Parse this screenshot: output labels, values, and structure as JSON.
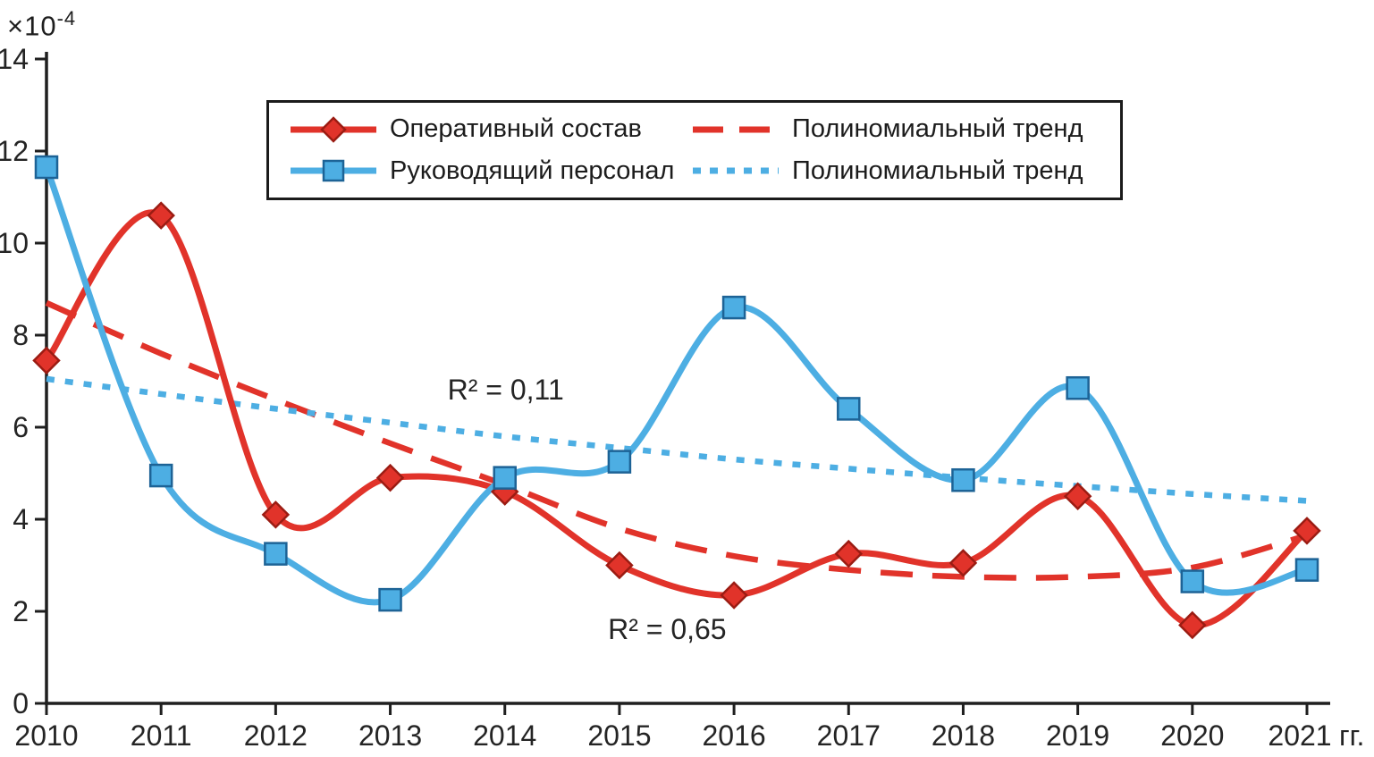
{
  "chart_data": {
    "type": "line",
    "title": "",
    "y_unit_base": "×10",
    "y_unit_exp": "-4",
    "x_suffix": "гг.",
    "x": [
      2010,
      2011,
      2012,
      2013,
      2014,
      2015,
      2016,
      2017,
      2018,
      2019,
      2020,
      2021
    ],
    "ylim": [
      0,
      14
    ],
    "y_ticks": [
      0,
      2,
      4,
      6,
      8,
      10,
      12,
      14
    ],
    "grid": false,
    "legend_position": "top-center",
    "series": [
      {
        "key": "operational",
        "name": "Оперативный состав",
        "color": "#e1332a",
        "marker": "diamond",
        "marker_edge": "#9b1c13",
        "line": "solid",
        "values": [
          7.45,
          10.6,
          4.1,
          4.9,
          4.6,
          3.0,
          2.35,
          3.25,
          3.05,
          4.5,
          1.7,
          3.75
        ]
      },
      {
        "key": "management",
        "name": "Руководящий персонал",
        "color": "#4daee3",
        "marker": "square",
        "marker_edge": "#1d6396",
        "line": "solid",
        "values": [
          11.65,
          4.95,
          3.25,
          2.25,
          4.9,
          5.25,
          8.6,
          6.4,
          4.85,
          6.85,
          2.65,
          2.9
        ]
      },
      {
        "key": "operational-trend",
        "name": "Полиномиальный тренд",
        "color": "#e1332a",
        "marker": "none",
        "marker_edge": "",
        "line": "dashed",
        "values": [
          8.7,
          7.6,
          6.6,
          5.65,
          4.75,
          3.8,
          3.2,
          2.9,
          2.75,
          2.75,
          2.95,
          3.65
        ]
      },
      {
        "key": "management-trend",
        "name": "Полиномиальный тренд",
        "color": "#4daee3",
        "marker": "none",
        "marker_edge": "",
        "line": "dotted",
        "values": [
          7.05,
          6.72,
          6.4,
          6.1,
          5.8,
          5.55,
          5.3,
          5.1,
          4.9,
          4.72,
          4.55,
          4.4
        ]
      }
    ],
    "legend_order": [
      0,
      2,
      1,
      3
    ],
    "annotations": [
      {
        "text": "R² = 0,11",
        "x": 2013.5,
        "y": 6.6,
        "color": "#333333"
      },
      {
        "text": "R² = 0,65",
        "x": 2014.9,
        "y": 1.4,
        "color": "#333333"
      }
    ]
  }
}
